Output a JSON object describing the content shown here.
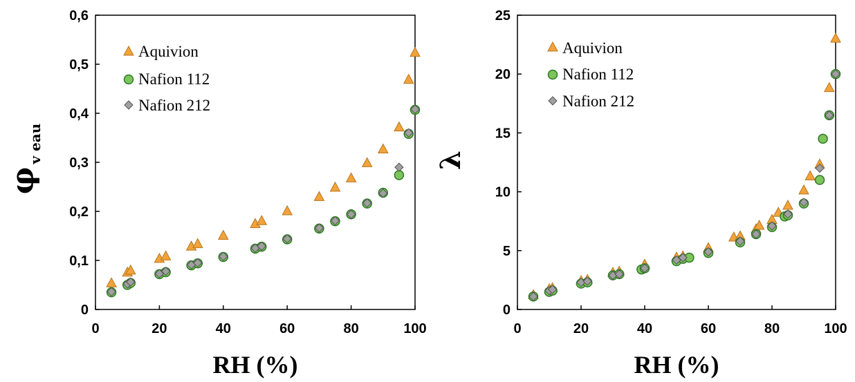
{
  "colors": {
    "aquivion_fill": "#F2A33A",
    "aquivion_stroke": "#B8761E",
    "nafion112_fill": "#7DC45A",
    "nafion112_stroke": "#2F7A2A",
    "nafion212_fill": "#A0A0A0",
    "nafion212_stroke": "#555555"
  },
  "chart_data": [
    {
      "type": "scatter",
      "xlabel": "RH (%)",
      "ylabel_symbol": "φ",
      "ylabel_subscript": "v eau",
      "xlim": [
        0,
        100
      ],
      "ylim": [
        0,
        0.6
      ],
      "xticks": [
        "0",
        "20",
        "40",
        "60",
        "80",
        "100"
      ],
      "yticks": [
        "0",
        "0,1",
        "0,2",
        "0,3",
        "0,4",
        "0,5",
        "0,6"
      ],
      "legend_position": "top-left",
      "series": [
        {
          "name": "Aquivion",
          "marker": "triangle",
          "points": [
            [
              5,
              0.053
            ],
            [
              10,
              0.075
            ],
            [
              11,
              0.079
            ],
            [
              20,
              0.103
            ],
            [
              22,
              0.108
            ],
            [
              30,
              0.128
            ],
            [
              32,
              0.133
            ],
            [
              40,
              0.15
            ],
            [
              50,
              0.174
            ],
            [
              52,
              0.18
            ],
            [
              60,
              0.2
            ],
            [
              70,
              0.229
            ],
            [
              75,
              0.248
            ],
            [
              80,
              0.267
            ],
            [
              85,
              0.298
            ],
            [
              90,
              0.326
            ],
            [
              95,
              0.371
            ],
            [
              98,
              0.468
            ],
            [
              100,
              0.523
            ]
          ]
        },
        {
          "name": "Nafion 112",
          "marker": "circle",
          "points": [
            [
              5,
              0.035
            ],
            [
              10,
              0.05
            ],
            [
              11,
              0.054
            ],
            [
              20,
              0.072
            ],
            [
              22,
              0.076
            ],
            [
              30,
              0.09
            ],
            [
              32,
              0.094
            ],
            [
              40,
              0.107
            ],
            [
              50,
              0.124
            ],
            [
              52,
              0.128
            ],
            [
              60,
              0.143
            ],
            [
              70,
              0.165
            ],
            [
              75,
              0.18
            ],
            [
              80,
              0.194
            ],
            [
              85,
              0.216
            ],
            [
              90,
              0.238
            ],
            [
              95,
              0.274
            ],
            [
              98,
              0.358
            ],
            [
              100,
              0.407
            ]
          ]
        },
        {
          "name": "Nafion 212",
          "marker": "diamond",
          "points": [
            [
              5,
              0.036
            ],
            [
              10,
              0.052
            ],
            [
              11,
              0.056
            ],
            [
              20,
              0.073
            ],
            [
              22,
              0.078
            ],
            [
              30,
              0.091
            ],
            [
              32,
              0.095
            ],
            [
              40,
              0.108
            ],
            [
              50,
              0.125
            ],
            [
              52,
              0.129
            ],
            [
              60,
              0.144
            ],
            [
              70,
              0.166
            ],
            [
              75,
              0.181
            ],
            [
              80,
              0.194
            ],
            [
              85,
              0.217
            ],
            [
              90,
              0.237
            ],
            [
              95,
              0.29
            ],
            [
              98,
              0.36
            ],
            [
              100,
              0.408
            ]
          ]
        }
      ]
    },
    {
      "type": "scatter",
      "xlabel": "RH (%)",
      "ylabel_symbol": "λ",
      "xlim": [
        0,
        100
      ],
      "ylim": [
        0,
        25
      ],
      "xticks": [
        "0",
        "20",
        "40",
        "60",
        "80",
        "100"
      ],
      "yticks": [
        "0",
        "5",
        "10",
        "15",
        "20",
        "25"
      ],
      "legend_position": "top-left",
      "series": [
        {
          "name": "Aquivion",
          "marker": "triangle",
          "points": [
            [
              5,
              1.2
            ],
            [
              10,
              1.7
            ],
            [
              11,
              1.8
            ],
            [
              20,
              2.4
            ],
            [
              22,
              2.5
            ],
            [
              30,
              3.1
            ],
            [
              32,
              3.2
            ],
            [
              40,
              3.8
            ],
            [
              50,
              4.4
            ],
            [
              52,
              4.5
            ],
            [
              60,
              5.2
            ],
            [
              68,
              6.1
            ],
            [
              70,
              6.2
            ],
            [
              75,
              6.8
            ],
            [
              76,
              7.1
            ],
            [
              80,
              7.6
            ],
            [
              82,
              8.2
            ],
            [
              85,
              8.8
            ],
            [
              90,
              10.1
            ],
            [
              92,
              11.3
            ],
            [
              95,
              12.3
            ],
            [
              98,
              18.8
            ],
            [
              100,
              23.0
            ]
          ]
        },
        {
          "name": "Nafion 112",
          "marker": "circle",
          "points": [
            [
              5,
              1.1
            ],
            [
              10,
              1.5
            ],
            [
              11,
              1.6
            ],
            [
              20,
              2.2
            ],
            [
              22,
              2.3
            ],
            [
              30,
              2.9
            ],
            [
              32,
              3.0
            ],
            [
              39,
              3.4
            ],
            [
              40,
              3.5
            ],
            [
              50,
              4.1
            ],
            [
              52,
              4.3
            ],
            [
              54,
              4.4
            ],
            [
              60,
              4.8
            ],
            [
              70,
              5.7
            ],
            [
              75,
              6.4
            ],
            [
              80,
              7.0
            ],
            [
              84,
              7.9
            ],
            [
              85,
              8.0
            ],
            [
              90,
              9.0
            ],
            [
              95,
              11.0
            ],
            [
              96,
              14.5
            ],
            [
              98,
              16.5
            ],
            [
              100,
              20.0
            ]
          ]
        },
        {
          "name": "Nafion 212",
          "marker": "diamond",
          "points": [
            [
              5,
              1.1
            ],
            [
              10,
              1.6
            ],
            [
              11,
              1.7
            ],
            [
              20,
              2.3
            ],
            [
              22,
              2.4
            ],
            [
              30,
              2.9
            ],
            [
              32,
              3.0
            ],
            [
              40,
              3.5
            ],
            [
              50,
              4.2
            ],
            [
              52,
              4.4
            ],
            [
              60,
              4.9
            ],
            [
              70,
              5.8
            ],
            [
              75,
              6.4
            ],
            [
              80,
              7.1
            ],
            [
              85,
              8.1
            ],
            [
              90,
              9.1
            ],
            [
              95,
              12.0
            ],
            [
              98,
              16.5
            ],
            [
              100,
              20.0
            ]
          ]
        }
      ]
    }
  ]
}
